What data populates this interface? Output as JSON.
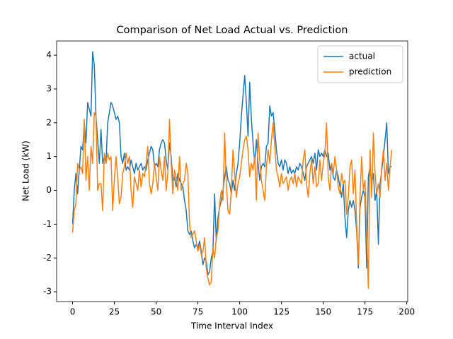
{
  "chart_data": {
    "type": "line",
    "title": "Comparison of Net Load Actual vs. Prediction",
    "xlabel": "Time Interval Index",
    "ylabel": "Net Load (kW)",
    "x": [
      0,
      1,
      2,
      3,
      4,
      5,
      6,
      7,
      8,
      9,
      10,
      11,
      12,
      13,
      14,
      15,
      16,
      17,
      18,
      19,
      20,
      21,
      22,
      23,
      24,
      25,
      26,
      27,
      28,
      29,
      30,
      31,
      32,
      33,
      34,
      35,
      36,
      37,
      38,
      39,
      40,
      41,
      42,
      43,
      44,
      45,
      46,
      47,
      48,
      49,
      50,
      51,
      52,
      53,
      54,
      55,
      56,
      57,
      58,
      59,
      60,
      61,
      62,
      63,
      64,
      65,
      66,
      67,
      68,
      69,
      70,
      71,
      72,
      73,
      74,
      75,
      76,
      77,
      78,
      79,
      80,
      81,
      82,
      83,
      84,
      85,
      86,
      87,
      88,
      89,
      90,
      91,
      92,
      93,
      94,
      95,
      96,
      97,
      98,
      99,
      100,
      101,
      102,
      103,
      104,
      105,
      106,
      107,
      108,
      109,
      110,
      111,
      112,
      113,
      114,
      115,
      116,
      117,
      118,
      119,
      120,
      121,
      122,
      123,
      124,
      125,
      126,
      127,
      128,
      129,
      130,
      131,
      132,
      133,
      134,
      135,
      136,
      137,
      138,
      139,
      140,
      141,
      142,
      143,
      144,
      145,
      146,
      147,
      148,
      149,
      150,
      151,
      152,
      153,
      154,
      155,
      156,
      157,
      158,
      159,
      160,
      161,
      162,
      163,
      164,
      165,
      166,
      167,
      168,
      169,
      170,
      171,
      172,
      173,
      174,
      175,
      176,
      177,
      178,
      179,
      180,
      181,
      182,
      183,
      184,
      185,
      186,
      187,
      188,
      189,
      190,
      191
    ],
    "series": [
      {
        "name": "actual",
        "color": "#1f77b4",
        "values": [
          -1.0,
          0.0,
          0.5,
          -0.1,
          0.6,
          1.3,
          1.2,
          2.0,
          1.4,
          2.6,
          2.4,
          2.2,
          4.1,
          3.7,
          2.2,
          1.5,
          0.8,
          1.8,
          0.8,
          1.0,
          0.8,
          2.0,
          2.3,
          2.6,
          2.5,
          2.3,
          2.1,
          2.2,
          2.0,
          1.0,
          0.8,
          1.1,
          0.6,
          0.7,
          0.6,
          0.9,
          0.7,
          0.5,
          0.8,
          0.6,
          0.7,
          0.8,
          0.6,
          0.7,
          0.6,
          0.9,
          1.1,
          1.3,
          1.2,
          0.7,
          0.8,
          0.7,
          1.2,
          1.4,
          1.5,
          1.4,
          0.9,
          0.6,
          1.4,
          1.0,
          0.3,
          0.4,
          0.1,
          0.5,
          0.3,
          0.2,
          0.1,
          -0.3,
          -0.6,
          -1.2,
          -1.3,
          -1.2,
          -1.5,
          -1.7,
          -1.6,
          -1.7,
          -1.5,
          -1.8,
          -2.2,
          -2.0,
          -2.1,
          -2.5,
          -2.4,
          -2.0,
          -1.8,
          -0.1,
          -1.5,
          -0.8,
          -0.5,
          -0.3,
          0.0,
          0.4,
          0.7,
          0.3,
          0.2,
          -0.1,
          0.3,
          0.0,
          0.5,
          0.8,
          1.4,
          2.2,
          2.8,
          3.4,
          2.6,
          1.6,
          3.2,
          2.1,
          1.4,
          0.8,
          1.5,
          0.8,
          0.3,
          0.7,
          0.8,
          0.7,
          1.3,
          1.4,
          2.5,
          2.2,
          2.3,
          1.8,
          1.2,
          0.8,
          0.7,
          0.9,
          0.6,
          0.9,
          0.8,
          0.5,
          0.7,
          0.5,
          0.6,
          0.5,
          0.7,
          0.6,
          0.8,
          0.7,
          0.5,
          0.3,
          0.7,
          0.8,
          0.9,
          1.0,
          0.8,
          1.1,
          0.6,
          1.2,
          1.0,
          1.1,
          1.0,
          1.2,
          1.0,
          1.1,
          0.6,
          0.8,
          0.4,
          0.3,
          0.6,
          0.4,
          0.1,
          -0.2,
          0.2,
          -0.8,
          -1.4,
          -0.6,
          -0.3,
          -0.5,
          -0.3,
          -0.6,
          -1.2,
          -2.3,
          -0.5,
          -0.2,
          0.0,
          -0.2,
          -2.3,
          0.4,
          0.7,
          0.2,
          0.5,
          -0.3,
          0.0,
          -1.6,
          0.2,
          0.6,
          1.0,
          1.5,
          2.0,
          0.5,
          0.7,
          0.7
        ]
      },
      {
        "name": "prediction",
        "color": "#ff7f0e",
        "values": [
          -1.25,
          -0.6,
          -0.4,
          0.8,
          0.6,
          0.7,
          0.5,
          2.1,
          0.3,
          1.0,
          0.0,
          1.3,
          0.8,
          2.3,
          2.2,
          0.0,
          0.2,
          0.2,
          -0.6,
          1.1,
          0.8,
          1.1,
          0.9,
          1.0,
          -0.6,
          0.3,
          1.0,
          0.4,
          -0.4,
          -0.2,
          0.5,
          0.7,
          1.1,
          0.8,
          1.0,
          0.0,
          -0.5,
          0.4,
          0.2,
          0.0,
          0.6,
          0.1,
          0.5,
          0.4,
          0.8,
          1.3,
          0.2,
          -0.1,
          0.2,
          0.8,
          0.4,
          0.0,
          1.0,
          0.6,
          0.3,
          1.0,
          0.0,
          0.5,
          2.1,
          0.8,
          -0.1,
          0.6,
          0.4,
          0.0,
          1.0,
          0.0,
          0.2,
          0.3,
          0.8,
          0.5,
          -1.0,
          -1.4,
          -1.3,
          -1.2,
          -1.5,
          -1.8,
          -1.6,
          -1.9,
          -1.8,
          -1.4,
          -2.3,
          -2.6,
          -2.8,
          -2.7,
          -1.7,
          -2.0,
          -1.4,
          -1.2,
          -0.4,
          0.0,
          -0.3,
          1.7,
          0.2,
          -0.6,
          -0.7,
          0.0,
          1.2,
          0.5,
          -0.2,
          0.2,
          0.4,
          0.8,
          1.2,
          1.5,
          1.6,
          1.2,
          0.4,
          0.8,
          0.6,
          1.0,
          -0.3,
          1.7,
          0.9,
          0.3,
          0.0,
          -0.3,
          0.7,
          1.2,
          0.8,
          1.5,
          2.0,
          1.3,
          0.6,
          0.4,
          0.1,
          0.5,
          0.2,
          0.3,
          0.4,
          0.0,
          0.3,
          0.4,
          0.2,
          0.5,
          0.1,
          0.4,
          0.3,
          0.2,
          0.9,
          1.2,
          0.2,
          -0.2,
          0.5,
          0.9,
          0.2,
          0.7,
          0.1,
          0.2,
          0.9,
          0.3,
          0.8,
          1.1,
          2.0,
          0.4,
          0.0,
          0.8,
          0.5,
          1.0,
          0.6,
          0.1,
          -0.1,
          0.5,
          0.2,
          0.3,
          -0.7,
          -0.2,
          0.7,
          0.9,
          -0.1,
          0.6,
          -1.0,
          -2.2,
          -0.2,
          1.0,
          0.0,
          0.3,
          -1.2,
          -2.9,
          1.2,
          -0.2,
          1.7,
          0.5,
          -0.1,
          0.2,
          -0.2,
          0.7,
          1.2,
          0.3,
          0.8,
          0.0,
          0.7,
          1.2
        ]
      }
    ],
    "xlim": [
      -9.55,
      200.55
    ],
    "xticks": [
      0,
      25,
      50,
      75,
      100,
      125,
      150,
      175,
      200
    ],
    "ylim": [
      -3.29,
      4.42
    ],
    "yticks": [
      -3,
      -2,
      -1,
      0,
      1,
      2,
      3,
      4
    ],
    "legend": "upper right"
  }
}
